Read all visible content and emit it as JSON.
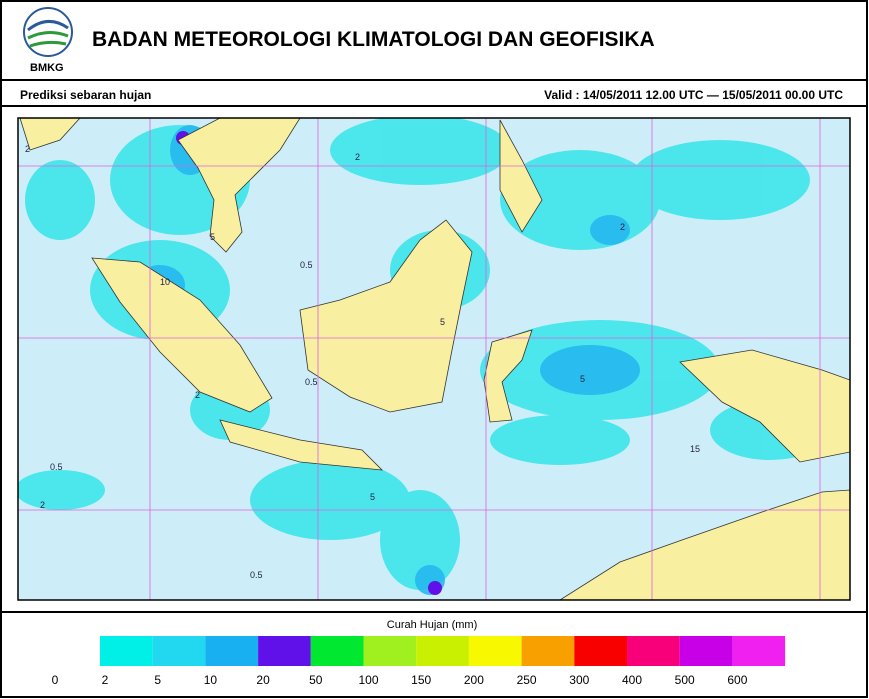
{
  "header": {
    "logo_text": "BMKG",
    "title": "BADAN METEOROLOGI KLIMATOLOGI DAN GEOFISIKA",
    "subtitle": "Prediksi sebaran hujan",
    "valid": "Valid : 14/05/2011   12.00 UTC — 15/05/2011   00.00 UTC"
  },
  "map": {
    "contour_labels": [
      "2",
      "0.5",
      "5",
      "2",
      "0.5",
      "5",
      "10",
      "2",
      "0.5",
      "2",
      "5",
      "0.5",
      "2",
      "5",
      "15"
    ]
  },
  "legend": {
    "title": "Curah Hujan (mm)",
    "labels": [
      "0",
      "2",
      "5",
      "10",
      "20",
      "50",
      "100",
      "150",
      "200",
      "250",
      "300",
      "400",
      "500",
      "600"
    ],
    "colors": [
      "#00f0e8",
      "#22d8f0",
      "#18b0f0",
      "#6010e8",
      "#00e830",
      "#a0f020",
      "#c8f000",
      "#f8f800",
      "#f8a000",
      "#f80000",
      "#f8007a",
      "#c800e8",
      "#f020f0"
    ]
  }
}
